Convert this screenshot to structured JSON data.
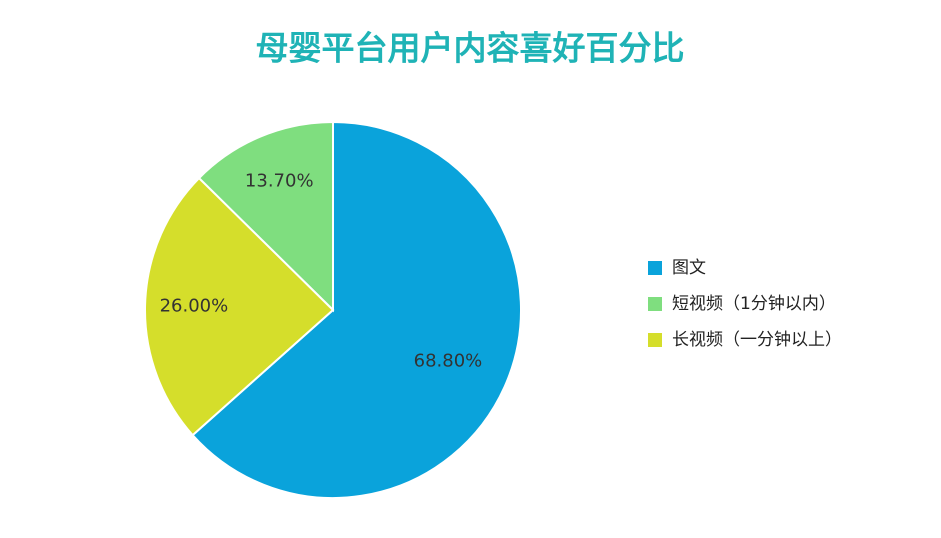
{
  "chart_data": {
    "type": "pie",
    "title": "母婴平台用户内容喜好百分比",
    "categories": [
      "图文",
      "短视频（1分钟以内）",
      "长视频（一分钟以上）"
    ],
    "values": [
      68.8,
      13.7,
      26.0
    ],
    "value_labels": [
      "68.80%",
      "13.70%",
      "26.00%"
    ],
    "colors": [
      "#0aa3db",
      "#7fde7f",
      "#d5de2b"
    ],
    "legend": "right"
  }
}
